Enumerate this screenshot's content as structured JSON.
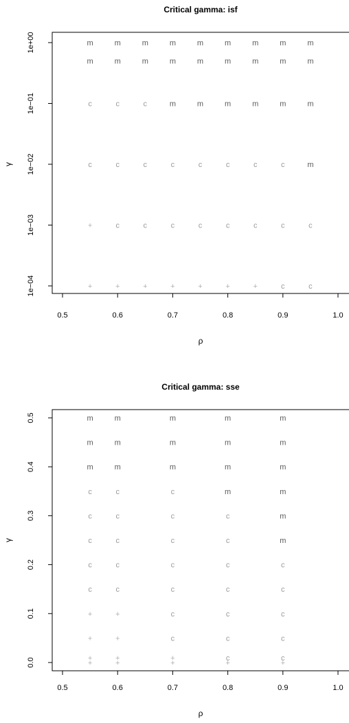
{
  "colors": {
    "m": "#5a5a5a",
    "c": "#9a9a9a",
    "+": "#b0b0b0",
    "axis": "#000000"
  },
  "chart_data": [
    {
      "type": "scatter",
      "title": "Critical gamma: isf",
      "xlabel": "ρ",
      "ylabel": "γ",
      "xlim": [
        0.5,
        1.0
      ],
      "ylim": [
        0.0001,
        1
      ],
      "y_scale": "log",
      "x_ticks": [
        "0.5",
        "0.6",
        "0.7",
        "0.8",
        "0.9",
        "1.0"
      ],
      "x_tick_values": [
        0.5,
        0.6,
        0.7,
        0.8,
        0.9,
        1.0
      ],
      "y_ticks": [
        "1e−04",
        "1e−03",
        "1e−02",
        "1e−01",
        "1e+00"
      ],
      "y_tick_values": [
        0.0001,
        0.001,
        0.01,
        0.1,
        1
      ],
      "grid": false,
      "points": [
        {
          "x": 0.55,
          "y": 1,
          "label": "m"
        },
        {
          "x": 0.6,
          "y": 1,
          "label": "m"
        },
        {
          "x": 0.65,
          "y": 1,
          "label": "m"
        },
        {
          "x": 0.7,
          "y": 1,
          "label": "m"
        },
        {
          "x": 0.75,
          "y": 1,
          "label": "m"
        },
        {
          "x": 0.8,
          "y": 1,
          "label": "m"
        },
        {
          "x": 0.85,
          "y": 1,
          "label": "m"
        },
        {
          "x": 0.9,
          "y": 1,
          "label": "m"
        },
        {
          "x": 0.95,
          "y": 1,
          "label": "m"
        },
        {
          "x": 0.55,
          "y": 0.5,
          "label": "m"
        },
        {
          "x": 0.6,
          "y": 0.5,
          "label": "m"
        },
        {
          "x": 0.65,
          "y": 0.5,
          "label": "m"
        },
        {
          "x": 0.7,
          "y": 0.5,
          "label": "m"
        },
        {
          "x": 0.75,
          "y": 0.5,
          "label": "m"
        },
        {
          "x": 0.8,
          "y": 0.5,
          "label": "m"
        },
        {
          "x": 0.85,
          "y": 0.5,
          "label": "m"
        },
        {
          "x": 0.9,
          "y": 0.5,
          "label": "m"
        },
        {
          "x": 0.95,
          "y": 0.5,
          "label": "m"
        },
        {
          "x": 0.55,
          "y": 0.1,
          "label": "c"
        },
        {
          "x": 0.6,
          "y": 0.1,
          "label": "c"
        },
        {
          "x": 0.65,
          "y": 0.1,
          "label": "c"
        },
        {
          "x": 0.7,
          "y": 0.1,
          "label": "m"
        },
        {
          "x": 0.75,
          "y": 0.1,
          "label": "m"
        },
        {
          "x": 0.8,
          "y": 0.1,
          "label": "m"
        },
        {
          "x": 0.85,
          "y": 0.1,
          "label": "m"
        },
        {
          "x": 0.9,
          "y": 0.1,
          "label": "m"
        },
        {
          "x": 0.95,
          "y": 0.1,
          "label": "m"
        },
        {
          "x": 0.55,
          "y": 0.01,
          "label": "c"
        },
        {
          "x": 0.6,
          "y": 0.01,
          "label": "c"
        },
        {
          "x": 0.65,
          "y": 0.01,
          "label": "c"
        },
        {
          "x": 0.7,
          "y": 0.01,
          "label": "c"
        },
        {
          "x": 0.75,
          "y": 0.01,
          "label": "c"
        },
        {
          "x": 0.8,
          "y": 0.01,
          "label": "c"
        },
        {
          "x": 0.85,
          "y": 0.01,
          "label": "c"
        },
        {
          "x": 0.9,
          "y": 0.01,
          "label": "c"
        },
        {
          "x": 0.95,
          "y": 0.01,
          "label": "m"
        },
        {
          "x": 0.55,
          "y": 0.001,
          "label": "+"
        },
        {
          "x": 0.6,
          "y": 0.001,
          "label": "c"
        },
        {
          "x": 0.65,
          "y": 0.001,
          "label": "c"
        },
        {
          "x": 0.7,
          "y": 0.001,
          "label": "c"
        },
        {
          "x": 0.75,
          "y": 0.001,
          "label": "c"
        },
        {
          "x": 0.8,
          "y": 0.001,
          "label": "c"
        },
        {
          "x": 0.85,
          "y": 0.001,
          "label": "c"
        },
        {
          "x": 0.9,
          "y": 0.001,
          "label": "c"
        },
        {
          "x": 0.95,
          "y": 0.001,
          "label": "c"
        },
        {
          "x": 0.55,
          "y": 0.0001,
          "label": "+"
        },
        {
          "x": 0.6,
          "y": 0.0001,
          "label": "+"
        },
        {
          "x": 0.65,
          "y": 0.0001,
          "label": "+"
        },
        {
          "x": 0.7,
          "y": 0.0001,
          "label": "+"
        },
        {
          "x": 0.75,
          "y": 0.0001,
          "label": "+"
        },
        {
          "x": 0.8,
          "y": 0.0001,
          "label": "+"
        },
        {
          "x": 0.85,
          "y": 0.0001,
          "label": "+"
        },
        {
          "x": 0.9,
          "y": 0.0001,
          "label": "c"
        },
        {
          "x": 0.95,
          "y": 0.0001,
          "label": "c"
        }
      ]
    },
    {
      "type": "scatter",
      "title": "Critical gamma: sse",
      "xlabel": "ρ",
      "ylabel": "γ",
      "xlim": [
        0.5,
        1.0
      ],
      "ylim": [
        0.0,
        0.5
      ],
      "y_scale": "linear",
      "x_ticks": [
        "0.5",
        "0.6",
        "0.7",
        "0.8",
        "0.9",
        "1.0"
      ],
      "x_tick_values": [
        0.5,
        0.6,
        0.7,
        0.8,
        0.9,
        1.0
      ],
      "y_ticks": [
        "0.0",
        "0.1",
        "0.2",
        "0.3",
        "0.4",
        "0.5"
      ],
      "y_tick_values": [
        0.0,
        0.1,
        0.2,
        0.3,
        0.4,
        0.5
      ],
      "grid": false,
      "points": [
        {
          "x": 0.55,
          "y": 0.5,
          "label": "m"
        },
        {
          "x": 0.6,
          "y": 0.5,
          "label": "m"
        },
        {
          "x": 0.7,
          "y": 0.5,
          "label": "m"
        },
        {
          "x": 0.8,
          "y": 0.5,
          "label": "m"
        },
        {
          "x": 0.9,
          "y": 0.5,
          "label": "m"
        },
        {
          "x": 0.55,
          "y": 0.45,
          "label": "m"
        },
        {
          "x": 0.6,
          "y": 0.45,
          "label": "m"
        },
        {
          "x": 0.7,
          "y": 0.45,
          "label": "m"
        },
        {
          "x": 0.8,
          "y": 0.45,
          "label": "m"
        },
        {
          "x": 0.9,
          "y": 0.45,
          "label": "m"
        },
        {
          "x": 0.55,
          "y": 0.4,
          "label": "m"
        },
        {
          "x": 0.6,
          "y": 0.4,
          "label": "m"
        },
        {
          "x": 0.7,
          "y": 0.4,
          "label": "m"
        },
        {
          "x": 0.8,
          "y": 0.4,
          "label": "m"
        },
        {
          "x": 0.9,
          "y": 0.4,
          "label": "m"
        },
        {
          "x": 0.55,
          "y": 0.35,
          "label": "c"
        },
        {
          "x": 0.6,
          "y": 0.35,
          "label": "c"
        },
        {
          "x": 0.7,
          "y": 0.35,
          "label": "c"
        },
        {
          "x": 0.8,
          "y": 0.35,
          "label": "m"
        },
        {
          "x": 0.9,
          "y": 0.35,
          "label": "m"
        },
        {
          "x": 0.55,
          "y": 0.3,
          "label": "c"
        },
        {
          "x": 0.6,
          "y": 0.3,
          "label": "c"
        },
        {
          "x": 0.7,
          "y": 0.3,
          "label": "c"
        },
        {
          "x": 0.8,
          "y": 0.3,
          "label": "c"
        },
        {
          "x": 0.9,
          "y": 0.3,
          "label": "m"
        },
        {
          "x": 0.55,
          "y": 0.25,
          "label": "c"
        },
        {
          "x": 0.6,
          "y": 0.25,
          "label": "c"
        },
        {
          "x": 0.7,
          "y": 0.25,
          "label": "c"
        },
        {
          "x": 0.8,
          "y": 0.25,
          "label": "c"
        },
        {
          "x": 0.9,
          "y": 0.25,
          "label": "m"
        },
        {
          "x": 0.55,
          "y": 0.2,
          "label": "c"
        },
        {
          "x": 0.6,
          "y": 0.2,
          "label": "c"
        },
        {
          "x": 0.7,
          "y": 0.2,
          "label": "c"
        },
        {
          "x": 0.8,
          "y": 0.2,
          "label": "c"
        },
        {
          "x": 0.9,
          "y": 0.2,
          "label": "c"
        },
        {
          "x": 0.55,
          "y": 0.15,
          "label": "c"
        },
        {
          "x": 0.6,
          "y": 0.15,
          "label": "c"
        },
        {
          "x": 0.7,
          "y": 0.15,
          "label": "c"
        },
        {
          "x": 0.8,
          "y": 0.15,
          "label": "c"
        },
        {
          "x": 0.9,
          "y": 0.15,
          "label": "c"
        },
        {
          "x": 0.55,
          "y": 0.1,
          "label": "+"
        },
        {
          "x": 0.6,
          "y": 0.1,
          "label": "+"
        },
        {
          "x": 0.7,
          "y": 0.1,
          "label": "c"
        },
        {
          "x": 0.8,
          "y": 0.1,
          "label": "c"
        },
        {
          "x": 0.9,
          "y": 0.1,
          "label": "c"
        },
        {
          "x": 0.55,
          "y": 0.05,
          "label": "+"
        },
        {
          "x": 0.6,
          "y": 0.05,
          "label": "+"
        },
        {
          "x": 0.7,
          "y": 0.05,
          "label": "c"
        },
        {
          "x": 0.8,
          "y": 0.05,
          "label": "c"
        },
        {
          "x": 0.9,
          "y": 0.05,
          "label": "c"
        },
        {
          "x": 0.55,
          "y": 0.01,
          "label": "+"
        },
        {
          "x": 0.6,
          "y": 0.01,
          "label": "+"
        },
        {
          "x": 0.7,
          "y": 0.01,
          "label": "+"
        },
        {
          "x": 0.8,
          "y": 0.01,
          "label": "c"
        },
        {
          "x": 0.9,
          "y": 0.01,
          "label": "c"
        },
        {
          "x": 0.55,
          "y": 0.0,
          "label": "+"
        },
        {
          "x": 0.6,
          "y": 0.0,
          "label": "+"
        },
        {
          "x": 0.7,
          "y": 0.0,
          "label": "+"
        },
        {
          "x": 0.8,
          "y": 0.0,
          "label": "+"
        },
        {
          "x": 0.9,
          "y": 0.0,
          "label": "+"
        }
      ]
    }
  ]
}
